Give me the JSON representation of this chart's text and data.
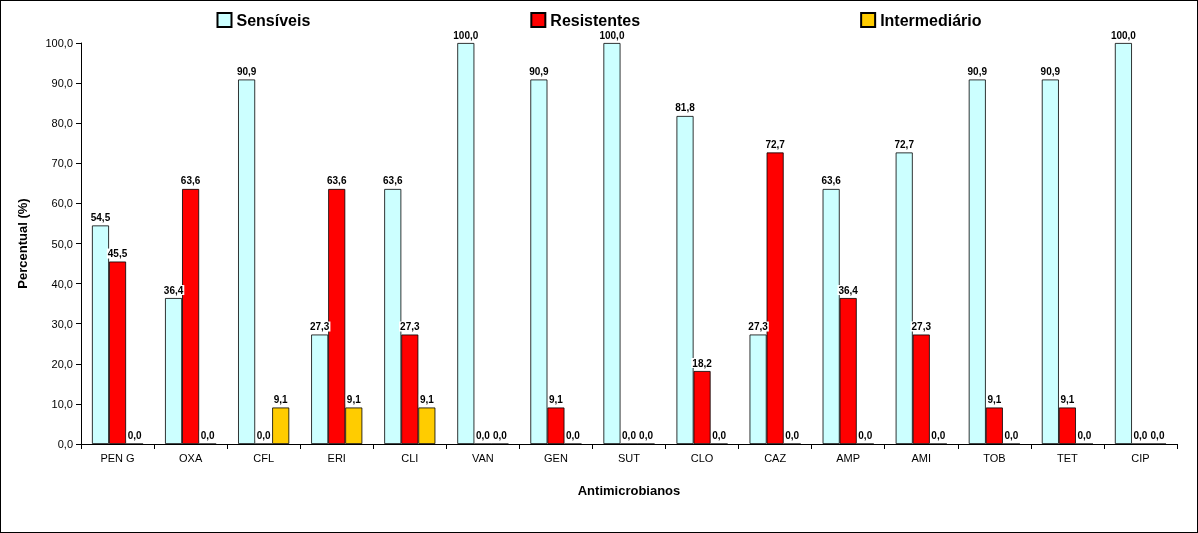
{
  "chart_data": {
    "type": "bar",
    "xlabel": "Antimicrobianos",
    "ylabel": "Percentual (%)",
    "categories": [
      "PEN G",
      "OXA",
      "CFL",
      "ERI",
      "CLI",
      "VAN",
      "GEN",
      "SUT",
      "CLO",
      "CAZ",
      "AMP",
      "AMI",
      "TOB",
      "TET",
      "CIP"
    ],
    "series": [
      {
        "name": "Sensíveis",
        "color": "#ccffff",
        "values": [
          54.5,
          36.4,
          90.9,
          27.3,
          63.6,
          100,
          90.9,
          100,
          81.8,
          27.3,
          63.6,
          72.7,
          90.9,
          90.9,
          100
        ]
      },
      {
        "name": "Resistentes",
        "color": "#ff0000",
        "values": [
          45.5,
          63.6,
          0,
          63.6,
          27.3,
          0,
          9.1,
          0,
          18.2,
          72.7,
          36.4,
          27.3,
          9.1,
          9.1,
          0
        ]
      },
      {
        "name": "Intermediário",
        "color": "#ffcc00",
        "values": [
          0,
          0,
          9.1,
          9.1,
          9.1,
          0,
          0,
          0,
          0,
          0,
          0,
          0,
          0,
          0,
          0
        ]
      }
    ],
    "value_labels": [
      [
        "54,5",
        "36,4",
        "90,9",
        "27,3",
        "63,6",
        "100,0",
        "90,9",
        "100,0",
        "81,8",
        "27,3",
        "63,6",
        "72,7",
        "90,9",
        "90,9",
        "100,0"
      ],
      [
        "45,5",
        "63,6",
        "0,0",
        "63,6",
        "27,3",
        "0,0",
        "9,1",
        "0,0",
        "18,2",
        "72,7",
        "36,4",
        "27,3",
        "9,1",
        "9,1",
        "0,0"
      ],
      [
        "0,0",
        "0,0",
        "9,1",
        "9,1",
        "9,1",
        "0,0",
        "0,0",
        "0,0",
        "0,0",
        "0,0",
        "0,0",
        "0,0",
        "0,0",
        "0,0",
        "0,0"
      ]
    ],
    "ylim": [
      0,
      100
    ],
    "yticks": [
      {
        "value": 0,
        "label": "0,0"
      },
      {
        "value": 10,
        "label": "10,0"
      },
      {
        "value": 20,
        "label": "20,0"
      },
      {
        "value": 30,
        "label": "30,0"
      },
      {
        "value": 40,
        "label": "40,0"
      },
      {
        "value": 50,
        "label": "50,0"
      },
      {
        "value": 60,
        "label": "60,0"
      },
      {
        "value": 70,
        "label": "70,0"
      },
      {
        "value": 80,
        "label": "80,0"
      },
      {
        "value": 90,
        "label": "90,0"
      },
      {
        "value": 100,
        "label": "100,0"
      }
    ],
    "grid": false,
    "legend": "top"
  }
}
